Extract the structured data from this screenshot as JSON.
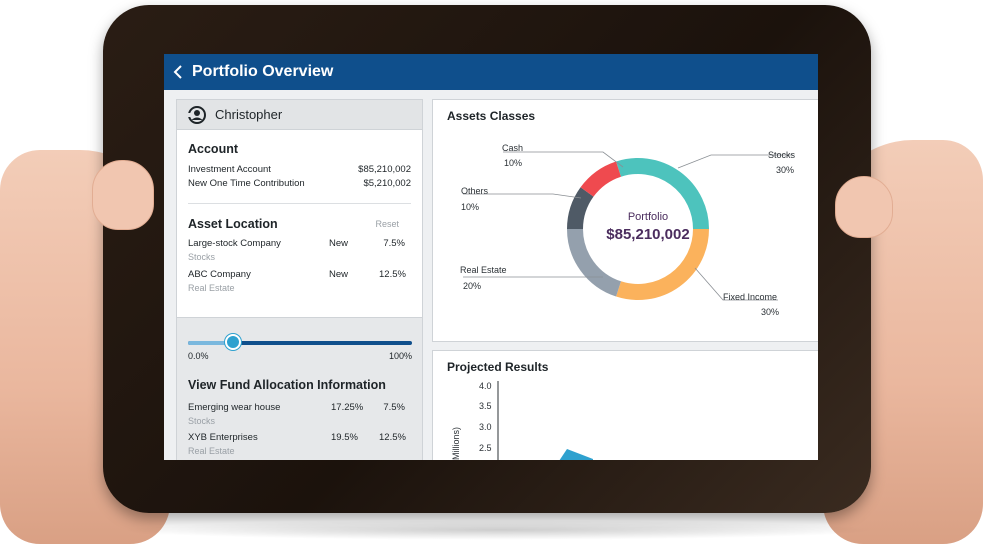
{
  "topbar": {
    "title": "Portfolio Overview"
  },
  "user": {
    "name": "Christopher"
  },
  "account": {
    "title": "Account",
    "rows": [
      {
        "label": "Investment Account",
        "value": "$85,210,002"
      },
      {
        "label": "New One Time Contribution",
        "value": "$5,210,002"
      }
    ]
  },
  "asset_location": {
    "title": "Asset Location",
    "reset_label": "Reset",
    "rows": [
      {
        "label": "Large-stock Company",
        "status": "New",
        "value": "7.5%",
        "sub": "Stocks"
      },
      {
        "label": "ABC Company",
        "status": "New",
        "value": "12.5%",
        "sub": "Real Estate"
      }
    ]
  },
  "slider": {
    "min_label": "0.0%",
    "max_label": "100%",
    "value": 0.2
  },
  "fund_allocation": {
    "title": "View Fund Allocation Information",
    "rows": [
      {
        "label": "Emerging wear house",
        "value1": "17.25%",
        "value2": "7.5%",
        "sub": "Stocks"
      },
      {
        "label": "XYB Enterprises",
        "value1": "19.5%",
        "value2": "12.5%",
        "sub": "Real Estate"
      }
    ]
  },
  "assets_card": {
    "title": "Assets Classes",
    "center_label": "Portfolio",
    "center_value": "$85,210,002"
  },
  "projected_card": {
    "title": "Projected Results",
    "y_label": "(Millions)"
  },
  "chart_data": [
    {
      "type": "pie",
      "title": "Assets Classes",
      "categories": [
        "Stocks",
        "Fixed Income",
        "Real Estate",
        "Others",
        "Cash"
      ],
      "values": [
        30,
        30,
        20,
        10,
        10
      ],
      "labels": [
        "30%",
        "30%",
        "20%",
        "10%",
        "10%"
      ],
      "colors": [
        "#4dc3bd",
        "#fbb25c",
        "#94a0ad",
        "#4f5a66",
        "#ef4a4f"
      ]
    },
    {
      "type": "line",
      "title": "Projected Results",
      "ylabel": "(Millions)",
      "yticks": [
        "4.0",
        "3.5",
        "3.0",
        "2.5"
      ],
      "ylim": [
        2.5,
        4.0
      ]
    }
  ]
}
